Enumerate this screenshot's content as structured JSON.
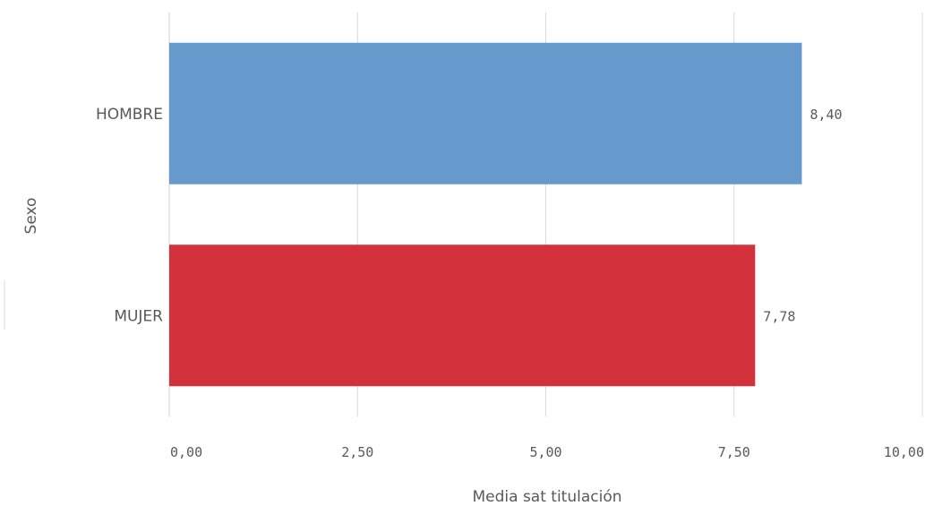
{
  "chart_data": {
    "type": "bar",
    "orientation": "horizontal",
    "categories": [
      "HOMBRE",
      "MUJER"
    ],
    "values": [
      8.4,
      7.78
    ],
    "value_labels": [
      "8,40",
      "7,78"
    ],
    "colors": [
      "#6699cc",
      "#d3323d"
    ],
    "xlabel": "Media sat titulación",
    "ylabel": "Sexo",
    "xlim": [
      0,
      10
    ],
    "ticks": [
      0,
      2.5,
      5,
      7.5,
      10
    ],
    "tick_labels": [
      "0,00",
      "2,50",
      "5,00",
      "7,50",
      "10,00"
    ],
    "grid": true
  }
}
